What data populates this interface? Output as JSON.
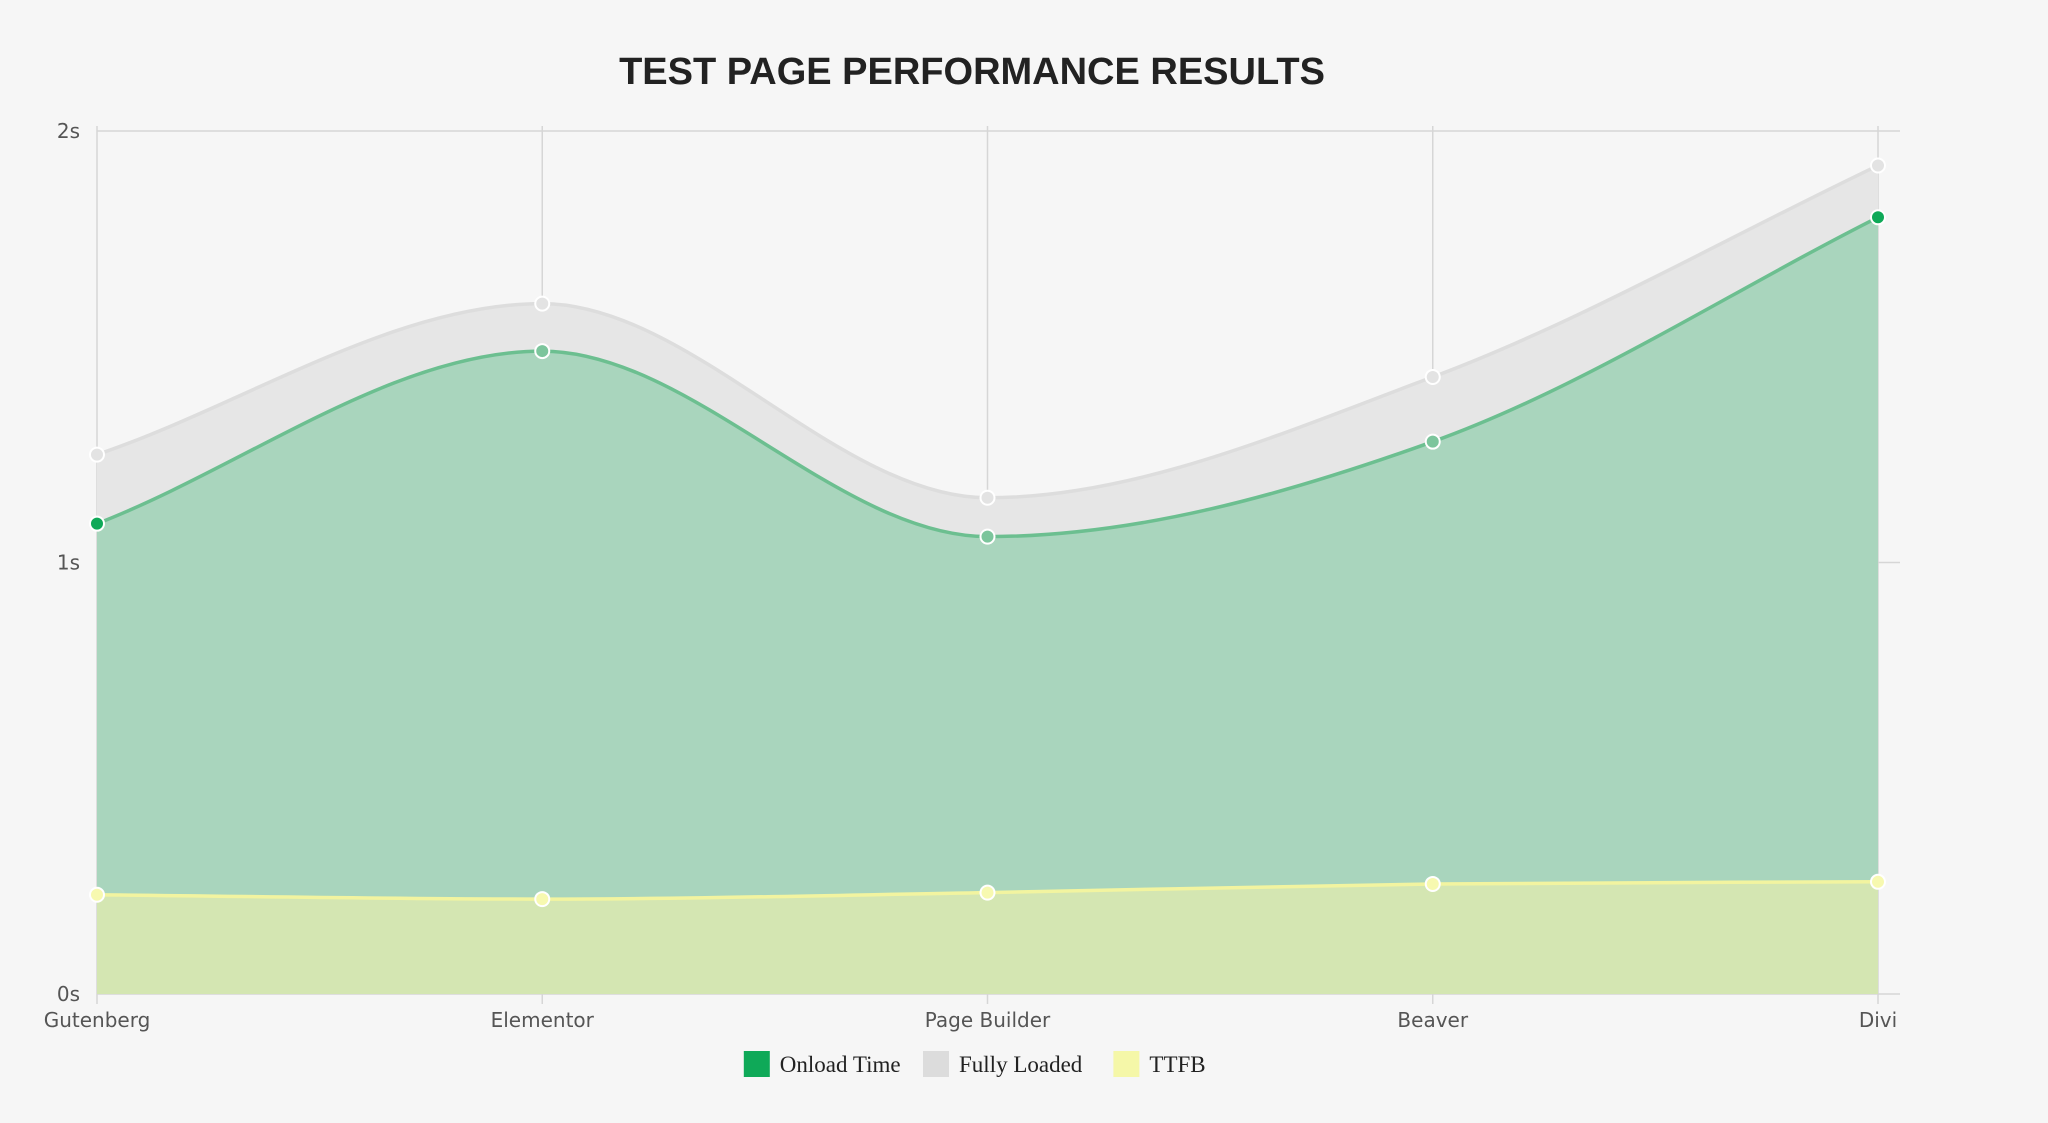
{
  "chart_data": {
    "type": "area",
    "title": "TEST PAGE PERFORMANCE RESULTS",
    "categories": [
      "Gutenberg",
      "Elementor",
      "Page Builder",
      "Beaver",
      "Divi"
    ],
    "y_ticks": [
      {
        "value": 0,
        "label": "0s"
      },
      {
        "value": 1,
        "label": "1s"
      },
      {
        "value": 2,
        "label": "2s"
      }
    ],
    "ylim": [
      0,
      2
    ],
    "grid": true,
    "legend_position": "bottom",
    "smooth": true,
    "series": [
      {
        "name": "Fully Loaded",
        "values": [
          1.25,
          1.6,
          1.15,
          1.43,
          1.92
        ],
        "color": "#dcdcdc",
        "fill": "#e6e6e6",
        "stroke": "#dddddd"
      },
      {
        "name": "Onload Time",
        "values": [
          1.09,
          1.49,
          1.06,
          1.28,
          1.8
        ],
        "color": "#0fa958",
        "fill": "#a9d5bd",
        "stroke": "#6cbf90"
      },
      {
        "name": "TTFB",
        "values": [
          0.23,
          0.22,
          0.235,
          0.255,
          0.26
        ],
        "color": "#f5f7a8",
        "fill": "#d4e6b2",
        "stroke": "#f2f4a0"
      }
    ],
    "legend": [
      {
        "name": "Onload Time",
        "color": "#0fa958"
      },
      {
        "name": "Fully Loaded",
        "color": "#dcdcdc"
      },
      {
        "name": "TTFB",
        "color": "#f5f7a8"
      }
    ]
  }
}
